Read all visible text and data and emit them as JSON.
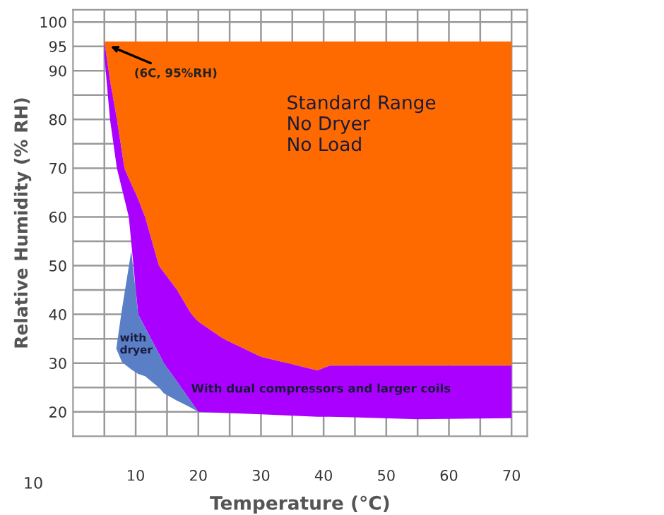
{
  "chart_data": {
    "type": "line",
    "xlabel": "Temperature (°C)",
    "ylabel": "Relative Humidity (% RH)",
    "xlim": [
      0,
      72.5
    ],
    "ylim": [
      15,
      102.5
    ],
    "xticks": [
      {
        "value": 5,
        "label": null
      },
      10,
      {
        "value": 15,
        "label": null
      },
      20,
      {
        "value": 25,
        "label": null
      },
      30,
      {
        "value": 35,
        "label": null
      },
      40,
      {
        "value": 45,
        "label": null
      },
      50,
      {
        "value": 55,
        "label": null
      },
      60,
      {
        "value": 65,
        "label": null
      },
      70
    ],
    "yticks": [
      20,
      {
        "value": 25,
        "label": null
      },
      30,
      {
        "value": 35,
        "label": null
      },
      40,
      {
        "value": 45,
        "label": null
      },
      50,
      {
        "value": 55,
        "label": null
      },
      60,
      {
        "value": 65,
        "label": null
      },
      70,
      {
        "value": 75,
        "label": null
      },
      80,
      {
        "value": 85,
        "label": null
      },
      90,
      95,
      100
    ],
    "grid": true,
    "series": [
      {
        "color": "#ff6a00",
        "x": [
          5,
          5.9,
          7,
          8.2,
          8.9,
          10.4,
          11.5,
          13.7,
          14.5,
          16.6,
          18.9,
          20,
          24,
          30,
          39,
          41,
          55,
          70
        ],
        "values": [
          null,
          null,
          null,
          null,
          null,
          null,
          null,
          null,
          null,
          null,
          null,
          null,
          null,
          null,
          null,
          null,
          null,
          null
        ],
        "upper": [
          96,
          96,
          96,
          96,
          96,
          96,
          96,
          96,
          96,
          96,
          96,
          96,
          96,
          96,
          96,
          96,
          96,
          96
        ],
        "lower": [
          96,
          88,
          80,
          70,
          67.9,
          63.6,
          60,
          50,
          48.6,
          45,
          40,
          38.5,
          35,
          31.3,
          28.5,
          29.5,
          29.5,
          29.5
        ]
      },
      {
        "color": "#aa00ff",
        "x": [
          5,
          5.9,
          7,
          8.2,
          8.9,
          10.4,
          11.5,
          13.7,
          14.5,
          16.6,
          18.9,
          20,
          24,
          30,
          39,
          41,
          55,
          70
        ],
        "values": [
          null,
          null,
          null,
          null,
          null,
          null,
          null,
          null,
          null,
          null,
          null,
          null,
          null,
          null,
          null,
          null,
          null,
          null
        ],
        "upper": [
          96,
          88,
          80,
          70,
          67.9,
          63.6,
          60,
          50,
          48.6,
          45,
          40,
          38.5,
          35,
          31.3,
          28.5,
          29.5,
          29.5,
          29.5
        ],
        "lower": [
          93,
          80,
          70,
          63.7,
          60,
          40,
          37.3,
          32,
          30,
          26.2,
          22,
          20,
          19.8,
          19.5,
          19,
          19,
          18.5,
          18.7
        ]
      },
      {
        "color": "#5b7fc7",
        "x": [
          6.9,
          7.8,
          9.3,
          10.4,
          11.5,
          13.7,
          14.5,
          16.6,
          18.9,
          20
        ],
        "values": [
          null,
          null,
          null,
          null,
          null,
          null,
          null,
          null,
          null,
          null
        ],
        "upper": [
          33,
          41,
          53,
          40,
          37.3,
          32,
          30,
          26.2,
          22,
          20
        ],
        "lower": [
          33,
          30.2,
          28.7,
          27.8,
          27.3,
          25,
          23.8,
          22.3,
          20.8,
          20
        ]
      }
    ],
    "annotations": [
      {
        "text": "(6C, 95%RH)",
        "x": 6,
        "y": 95
      },
      "Standard Range\nNo Dryer\nNo Load",
      "with\ndryer",
      "With dual compressors and larger coils",
      "10"
    ]
  }
}
